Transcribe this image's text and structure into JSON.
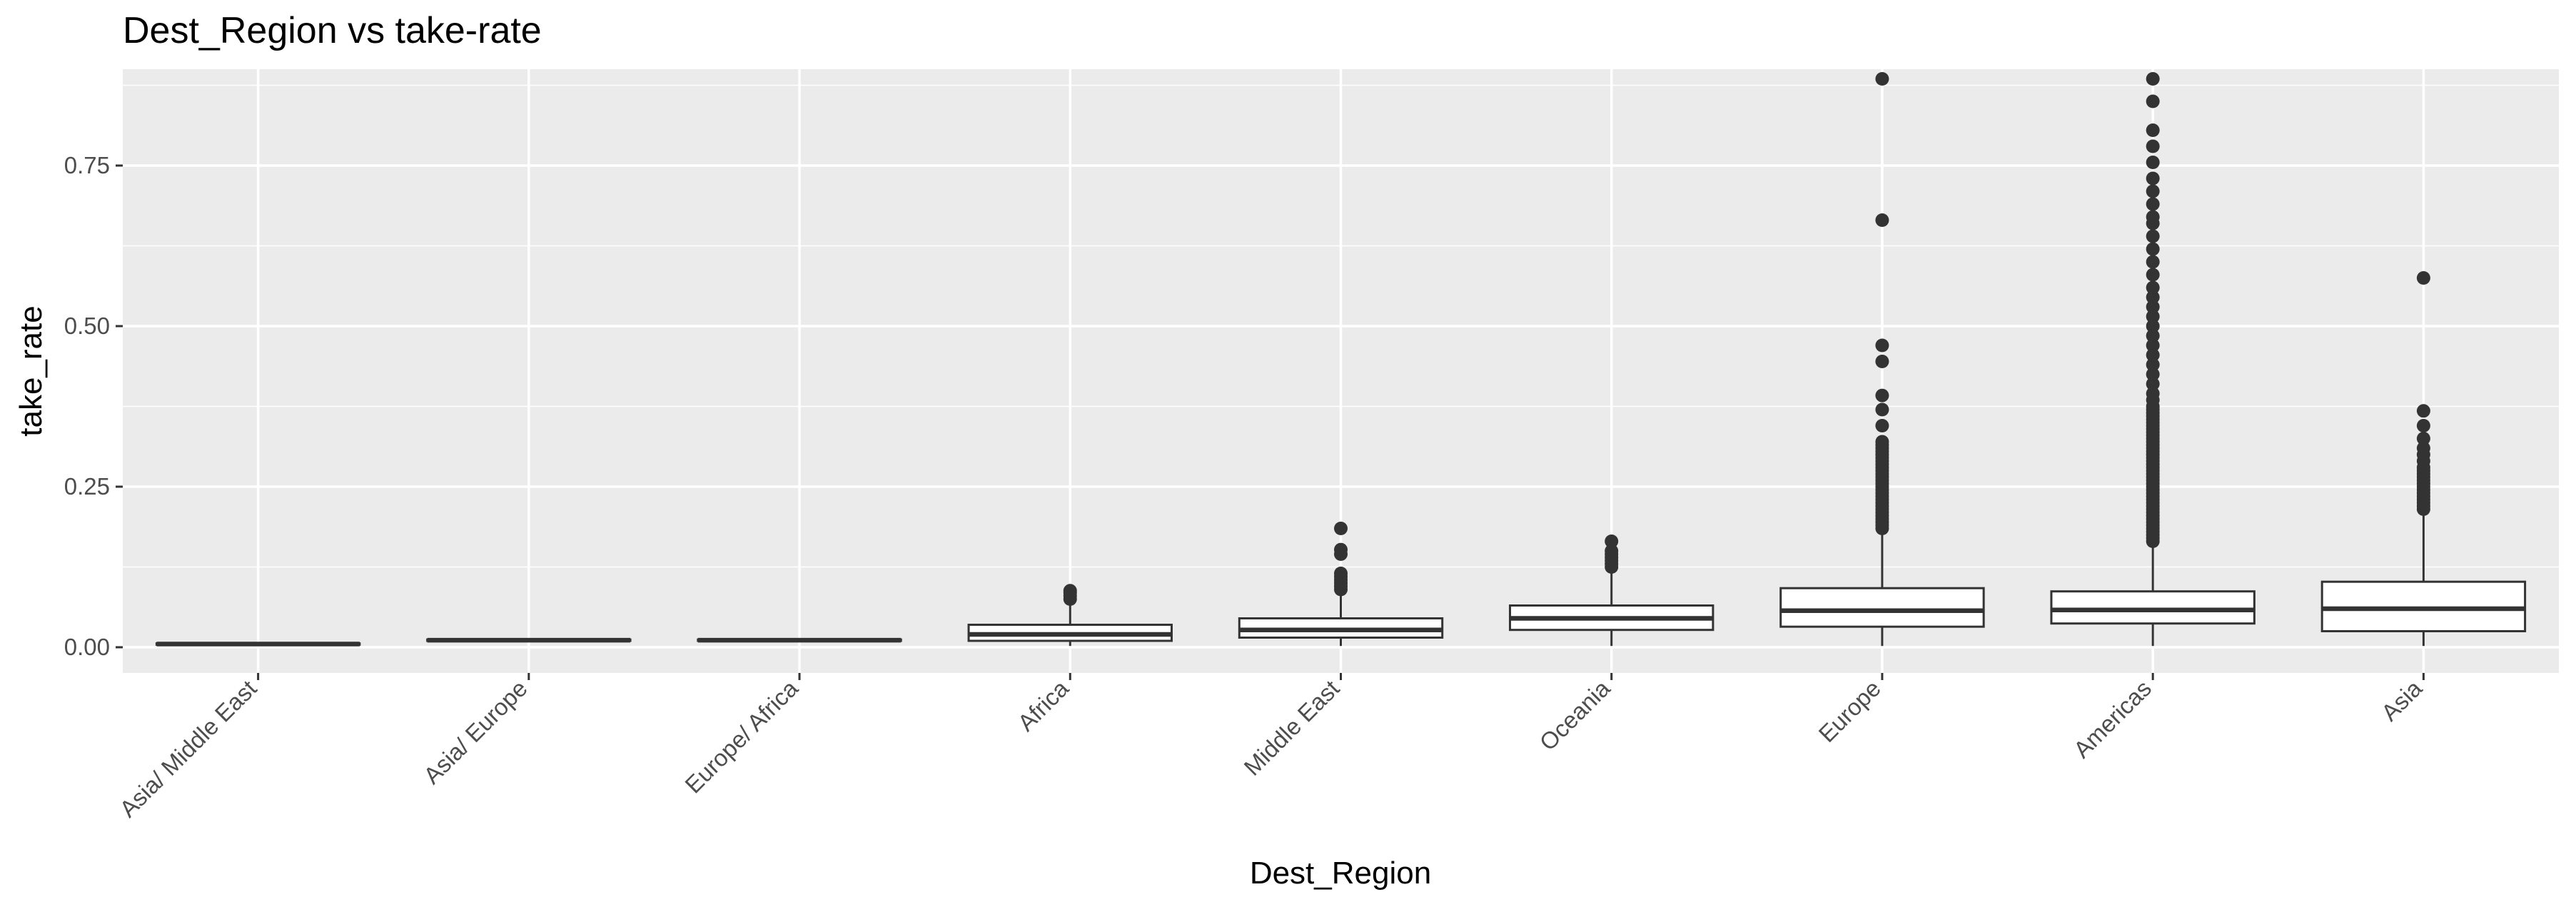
{
  "chart_data": {
    "type": "box",
    "title": "Dest_Region vs take-rate",
    "xlabel": "Dest_Region",
    "ylabel": "take_rate",
    "ylim": [
      -0.04,
      0.9
    ],
    "yticks": [
      0.0,
      0.25,
      0.5,
      0.75
    ],
    "ytick_labels": [
      "0.00",
      "0.25",
      "0.50",
      "0.75"
    ],
    "grid": true,
    "legend": "none",
    "colors": {
      "panel_background": "#ebebeb",
      "grid_line": "#ffffff",
      "box_fill": "#ffffff",
      "box_stroke": "#333333",
      "outlier": "#333333",
      "tick_text": "#4d4d4d"
    },
    "categories": [
      "Asia/ Middle East",
      "Asia/ Europe",
      "Europe/ Africa",
      "Africa",
      "Middle East",
      "Oceania",
      "Europe",
      "Americas",
      "Asia"
    ],
    "boxes": [
      {
        "q1": 0.004,
        "median": 0.005,
        "q3": 0.006,
        "whisker_low": 0.004,
        "whisker_high": 0.006,
        "outliers": []
      },
      {
        "q1": 0.01,
        "median": 0.011,
        "q3": 0.012,
        "whisker_low": 0.01,
        "whisker_high": 0.012,
        "outliers": []
      },
      {
        "q1": 0.01,
        "median": 0.011,
        "q3": 0.012,
        "whisker_low": 0.01,
        "whisker_high": 0.012,
        "outliers": []
      },
      {
        "q1": 0.01,
        "median": 0.02,
        "q3": 0.035,
        "whisker_low": 0.002,
        "whisker_high": 0.07,
        "outliers": [
          0.075,
          0.08,
          0.085,
          0.088
        ]
      },
      {
        "q1": 0.015,
        "median": 0.027,
        "q3": 0.045,
        "whisker_low": 0.002,
        "whisker_high": 0.085,
        "outliers": [
          0.09,
          0.095,
          0.1,
          0.105,
          0.11,
          0.115,
          0.145,
          0.152,
          0.185
        ]
      },
      {
        "q1": 0.027,
        "median": 0.045,
        "q3": 0.065,
        "whisker_low": 0.002,
        "whisker_high": 0.12,
        "outliers": [
          0.125,
          0.13,
          0.135,
          0.14,
          0.145,
          0.15,
          0.165
        ]
      },
      {
        "q1": 0.032,
        "median": 0.057,
        "q3": 0.092,
        "whisker_low": 0.002,
        "whisker_high": 0.18,
        "outliers": [
          0.185,
          0.19,
          0.195,
          0.2,
          0.205,
          0.21,
          0.215,
          0.22,
          0.225,
          0.23,
          0.235,
          0.24,
          0.245,
          0.25,
          0.255,
          0.26,
          0.265,
          0.27,
          0.275,
          0.28,
          0.285,
          0.29,
          0.295,
          0.3,
          0.305,
          0.31,
          0.315,
          0.32,
          0.345,
          0.37,
          0.392,
          0.445,
          0.47,
          0.665,
          0.885
        ]
      },
      {
        "q1": 0.037,
        "median": 0.058,
        "q3": 0.087,
        "whisker_low": 0.002,
        "whisker_high": 0.16,
        "outliers": [
          0.165,
          0.17,
          0.175,
          0.18,
          0.185,
          0.19,
          0.195,
          0.2,
          0.205,
          0.21,
          0.215,
          0.22,
          0.225,
          0.23,
          0.235,
          0.24,
          0.245,
          0.25,
          0.255,
          0.26,
          0.265,
          0.27,
          0.275,
          0.28,
          0.285,
          0.29,
          0.295,
          0.3,
          0.305,
          0.31,
          0.315,
          0.32,
          0.325,
          0.33,
          0.335,
          0.34,
          0.345,
          0.35,
          0.355,
          0.36,
          0.365,
          0.37,
          0.375,
          0.385,
          0.395,
          0.41,
          0.425,
          0.44,
          0.455,
          0.47,
          0.485,
          0.5,
          0.515,
          0.53,
          0.545,
          0.56,
          0.58,
          0.6,
          0.62,
          0.64,
          0.66,
          0.67,
          0.69,
          0.71,
          0.73,
          0.755,
          0.78,
          0.805,
          0.85,
          0.885
        ]
      },
      {
        "q1": 0.025,
        "median": 0.06,
        "q3": 0.102,
        "whisker_low": 0.002,
        "whisker_high": 0.21,
        "outliers": [
          0.215,
          0.22,
          0.225,
          0.23,
          0.235,
          0.24,
          0.245,
          0.25,
          0.255,
          0.26,
          0.265,
          0.27,
          0.275,
          0.28,
          0.29,
          0.3,
          0.31,
          0.325,
          0.345,
          0.368,
          0.575
        ]
      }
    ]
  }
}
